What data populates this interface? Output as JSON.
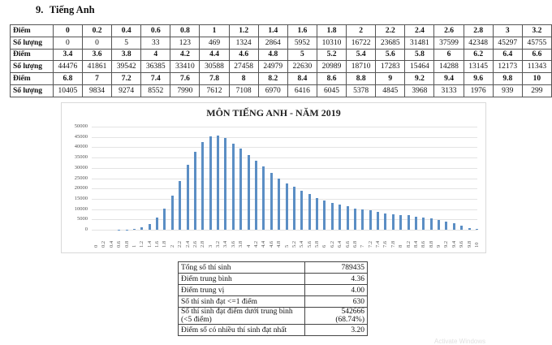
{
  "heading": {
    "number": "9.",
    "title": "Tiếng Anh"
  },
  "distribution_table": {
    "row_label_score": "Điểm",
    "row_label_count": "Số lượng",
    "blocks": [
      {
        "scores": [
          "0",
          "0.2",
          "0.4",
          "0.6",
          "0.8",
          "1",
          "1.2",
          "1.4",
          "1.6",
          "1.8",
          "2",
          "2.2",
          "2.4",
          "2.6",
          "2.8",
          "3",
          "3.2"
        ],
        "counts": [
          "0",
          "0",
          "5",
          "33",
          "123",
          "469",
          "1324",
          "2864",
          "5952",
          "10310",
          "16722",
          "23685",
          "31481",
          "37599",
          "42348",
          "45297",
          "45755"
        ]
      },
      {
        "scores": [
          "3.4",
          "3.6",
          "3.8",
          "4",
          "4.2",
          "4.4",
          "4.6",
          "4.8",
          "5",
          "5.2",
          "5.4",
          "5.6",
          "5.8",
          "6",
          "6.2",
          "6.4",
          "6.6"
        ],
        "counts": [
          "44476",
          "41861",
          "39542",
          "36385",
          "33410",
          "30588",
          "27458",
          "24979",
          "22630",
          "20989",
          "18710",
          "17283",
          "15464",
          "14288",
          "13145",
          "12173",
          "11343"
        ]
      },
      {
        "scores": [
          "6.8",
          "7",
          "7.2",
          "7.4",
          "7.6",
          "7.8",
          "8",
          "8.2",
          "8.4",
          "8.6",
          "8.8",
          "9",
          "9.2",
          "9.4",
          "9.6",
          "9.8",
          "10"
        ],
        "counts": [
          "10405",
          "9834",
          "9274",
          "8552",
          "7990",
          "7612",
          "7108",
          "6970",
          "6416",
          "6045",
          "5378",
          "4845",
          "3968",
          "3133",
          "1976",
          "939",
          "299"
        ]
      }
    ]
  },
  "chart_data": {
    "type": "bar",
    "title": "MÔN TIẾNG ANH - NĂM 2019",
    "xlabel": "",
    "ylabel": "",
    "ylim": [
      0,
      50000
    ],
    "yticks": [
      0,
      5000,
      10000,
      15000,
      20000,
      25000,
      30000,
      35000,
      40000,
      45000,
      50000
    ],
    "grid": true,
    "legend": "none",
    "bar_color": "#5b8ec4",
    "categories": [
      "0",
      "0.2",
      "0.4",
      "0.6",
      "0.8",
      "1",
      "1.2",
      "1.4",
      "1.6",
      "1.8",
      "2",
      "2.2",
      "2.4",
      "2.6",
      "2.8",
      "3",
      "3.2",
      "3.4",
      "3.6",
      "3.8",
      "4",
      "4.2",
      "4.4",
      "4.6",
      "4.8",
      "5",
      "5.2",
      "5.4",
      "5.6",
      "5.8",
      "6",
      "6.2",
      "6.4",
      "6.6",
      "6.8",
      "7",
      "7.2",
      "7.4",
      "7.6",
      "7.8",
      "8",
      "8.2",
      "8.4",
      "8.6",
      "8.8",
      "9",
      "9.2",
      "9.4",
      "9.6",
      "9.8",
      "10"
    ],
    "values": [
      0,
      0,
      5,
      33,
      123,
      469,
      1324,
      2864,
      5952,
      10310,
      16722,
      23685,
      31481,
      37599,
      42348,
      45297,
      45755,
      44476,
      41861,
      39542,
      36385,
      33410,
      30588,
      27458,
      24979,
      22630,
      20989,
      18710,
      17283,
      15464,
      14288,
      13145,
      12173,
      11343,
      10405,
      9834,
      9274,
      8552,
      7990,
      7612,
      7108,
      6970,
      6416,
      6045,
      5378,
      4845,
      3968,
      3133,
      1976,
      939,
      299
    ]
  },
  "summary": [
    {
      "label": "Tổng số thí sinh",
      "value": "789435"
    },
    {
      "label": "Điểm trung bình",
      "value": "4.36"
    },
    {
      "label": "Điểm trung vị",
      "value": "4.00"
    },
    {
      "label": "Số thí sinh đạt <=1 điểm",
      "value": "630"
    },
    {
      "label": "Số thí sinh đạt điểm  dưới trung bình",
      "label2": "(<5 điểm)",
      "value": "542666",
      "value2": "(68.74%)"
    },
    {
      "label": "Điểm số có nhiều thí sinh đạt nhất",
      "value": "3.20"
    }
  ],
  "watermark": "Activate Windows"
}
